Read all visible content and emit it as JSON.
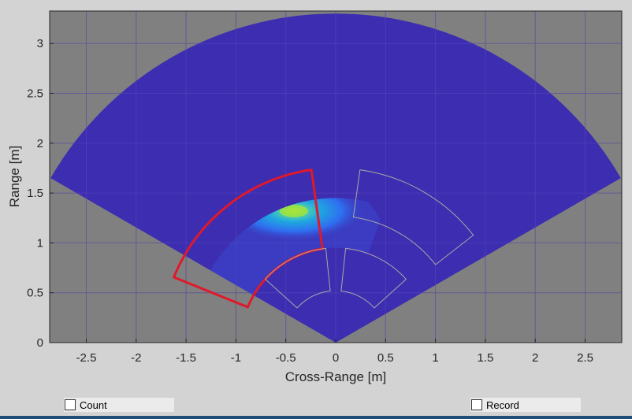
{
  "chart_data": {
    "type": "heatmap",
    "title": "",
    "xlabel": "Cross-Range [m]",
    "ylabel": "Range [m]",
    "xlim": [
      -2.85,
      2.95
    ],
    "ylim": [
      0,
      3.3
    ],
    "x_ticks": [
      "-2.5",
      "-2",
      "-1.5",
      "-1",
      "-0.5",
      "0",
      "0.5",
      "1",
      "1.5",
      "2",
      "2.5"
    ],
    "x_tick_values": [
      -2.5,
      -2,
      -1.5,
      -1,
      -0.5,
      0,
      0.5,
      1,
      1.5,
      2,
      2.5
    ],
    "y_ticks": [
      "0",
      "0.5",
      "1",
      "1.5",
      "2",
      "2.5",
      "3"
    ],
    "y_tick_values": [
      0,
      0.5,
      1,
      1.5,
      2,
      2.5,
      3
    ],
    "grid": true,
    "field_of_view": {
      "max_range_m": 3.3,
      "half_angle_deg": 60
    },
    "hotspot": {
      "x": -0.42,
      "y": 1.32
    },
    "zones": [
      {
        "name": "zone-far-left",
        "r_inner": 0.95,
        "r_outer": 1.75,
        "theta_start_deg": -68,
        "theta_end_deg": -8,
        "highlighted": true
      },
      {
        "name": "zone-far-right",
        "r_inner": 1.27,
        "r_outer": 1.75,
        "theta_start_deg": 8,
        "theta_end_deg": 52,
        "highlighted": false
      },
      {
        "name": "zone-near-left",
        "r_inner": 0.52,
        "r_outer": 0.95,
        "theta_start_deg": -48,
        "theta_end_deg": -6,
        "highlighted": false
      },
      {
        "name": "zone-near-right",
        "r_inner": 0.52,
        "r_outer": 0.95,
        "theta_start_deg": 6,
        "theta_end_deg": 48,
        "highlighted": false
      }
    ],
    "colors": {
      "axes_background": "#808080",
      "sector_fill": "#3d2db0",
      "highlight_zone": "#e0192a",
      "zone_outline": "#a9a9a9"
    }
  },
  "controls": {
    "count_label": "Count",
    "record_label": "Record",
    "count_checked": false,
    "record_checked": false
  }
}
